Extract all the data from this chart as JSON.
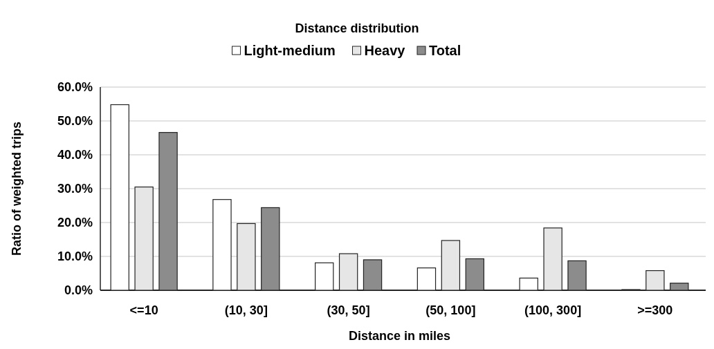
{
  "chart_data": {
    "type": "bar",
    "title": "Distance distribution",
    "xlabel": "Distance in miles",
    "ylabel": "Ratio of weighted trips",
    "categories": [
      "<=10",
      "(10, 30]",
      "(30, 50]",
      "(50, 100]",
      "(100, 300]",
      ">=300"
    ],
    "series": [
      {
        "name": "Light-medium",
        "color": "#ffffff",
        "values": [
          54.8,
          26.8,
          8.1,
          6.6,
          3.6,
          0.2
        ]
      },
      {
        "name": "Heavy",
        "color": "#e6e6e6",
        "values": [
          30.5,
          19.7,
          10.8,
          14.7,
          18.4,
          5.8
        ]
      },
      {
        "name": "Total",
        "color": "#8c8c8c",
        "values": [
          46.6,
          24.4,
          9.0,
          9.3,
          8.7,
          2.1
        ]
      }
    ],
    "ylim": [
      0,
      60
    ],
    "yticks": [
      {
        "value": 0,
        "label": "0.0%"
      },
      {
        "value": 10,
        "label": "10.0%"
      },
      {
        "value": 20,
        "label": "20.0%"
      },
      {
        "value": 30,
        "label": "30.0%"
      },
      {
        "value": 40,
        "label": "40.0%"
      },
      {
        "value": 50,
        "label": "50.0%"
      },
      {
        "value": 60,
        "label": "60.0%"
      }
    ],
    "grid": "y",
    "legend": "top"
  }
}
